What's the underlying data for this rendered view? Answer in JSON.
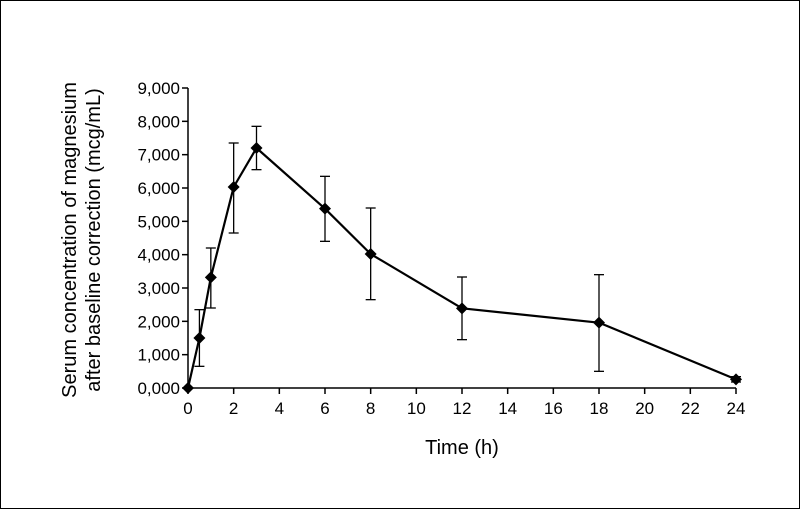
{
  "chart_data": {
    "type": "line",
    "title": "",
    "xlabel": "Time (h)",
    "ylabel_lines": [
      "Serum concentration of magnesium",
      "after baseline correction (mcg/mL)"
    ],
    "xlim": [
      0,
      24
    ],
    "ylim": [
      0,
      9000
    ],
    "x_ticks": [
      0,
      2,
      4,
      6,
      8,
      10,
      12,
      14,
      16,
      18,
      20,
      22,
      24
    ],
    "x_tick_labels": [
      "0",
      "2",
      "4",
      "6",
      "8",
      "10",
      "12",
      "14",
      "16",
      "18",
      "20",
      "22",
      "24"
    ],
    "y_ticks": [
      0,
      1000,
      2000,
      3000,
      4000,
      5000,
      6000,
      7000,
      8000,
      9000
    ],
    "y_tick_labels": [
      "0,000",
      "1,000",
      "2,000",
      "3,000",
      "4,000",
      "5,000",
      "6,000",
      "7,000",
      "8,000",
      "9,000"
    ],
    "grid": false,
    "legend": "none",
    "series": [
      {
        "color": "#000000",
        "marker": "diamond",
        "points": [
          {
            "x": 0,
            "y": 0,
            "err_low": 0,
            "err_high": 0
          },
          {
            "x": 0.5,
            "y": 1500,
            "err_low": 650,
            "err_high": 2350
          },
          {
            "x": 1,
            "y": 3320,
            "err_low": 2400,
            "err_high": 4200
          },
          {
            "x": 2,
            "y": 6030,
            "err_low": 4650,
            "err_high": 7350
          },
          {
            "x": 3,
            "y": 7200,
            "err_low": 6550,
            "err_high": 7850
          },
          {
            "x": 6,
            "y": 5380,
            "err_low": 4400,
            "err_high": 6350
          },
          {
            "x": 8,
            "y": 4020,
            "err_low": 2650,
            "err_high": 5400
          },
          {
            "x": 12,
            "y": 2390,
            "err_low": 1450,
            "err_high": 3330
          },
          {
            "x": 18,
            "y": 1960,
            "err_low": 500,
            "err_high": 3400
          },
          {
            "x": 24,
            "y": 260,
            "err_low": 180,
            "err_high": 340
          }
        ]
      }
    ]
  }
}
